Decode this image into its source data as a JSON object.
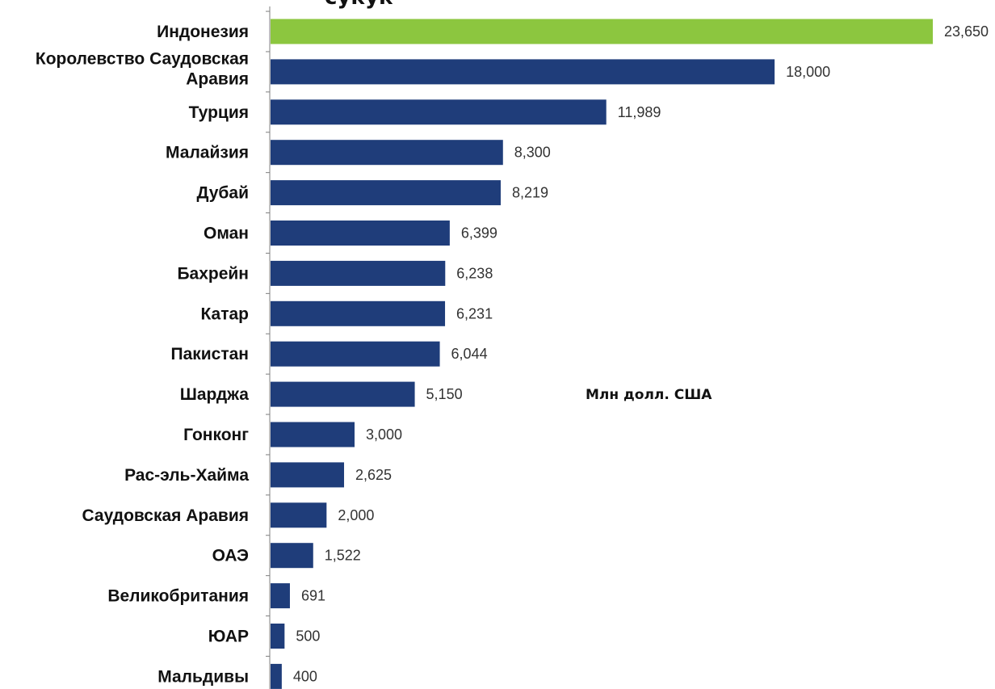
{
  "chart_data": {
    "type": "bar",
    "orientation": "horizontal",
    "title": "сукук",
    "unit_label": "Млн долл. США",
    "categories": [
      [
        "Индонезия"
      ],
      [
        "Королевство Саудовская",
        "Аравия"
      ],
      [
        "Турция"
      ],
      [
        "Малайзия"
      ],
      [
        "Дубай"
      ],
      [
        "Оман"
      ],
      [
        "Бахрейн"
      ],
      [
        "Катар"
      ],
      [
        "Пакистан"
      ],
      [
        "Шарджа"
      ],
      [
        "Гонконг"
      ],
      [
        "Рас-эль-Хайма"
      ],
      [
        "Саудовская Аравия"
      ],
      [
        "ОАЭ"
      ],
      [
        "Великобритания"
      ],
      [
        "ЮАР"
      ],
      [
        "Мальдивы"
      ]
    ],
    "values": [
      23650,
      18000,
      11989,
      8300,
      8219,
      6399,
      6238,
      6231,
      6044,
      5150,
      3000,
      2625,
      2000,
      1522,
      691,
      500,
      400
    ],
    "value_labels": [
      "23,650",
      "18,000",
      "11,989",
      "8,300",
      "8,219",
      "6,399",
      "6,238",
      "6,231",
      "6,044",
      "5,150",
      "3,000",
      "2,625",
      "2,000",
      "1,522",
      "691",
      "500",
      "400"
    ],
    "colors": {
      "highlight": "#8cc63f",
      "default": "#1f3d7a",
      "axis": "#7f7f7f"
    },
    "highlight_index": 0,
    "xlim": [
      0,
      23650
    ],
    "grid": false,
    "legend": "none"
  }
}
